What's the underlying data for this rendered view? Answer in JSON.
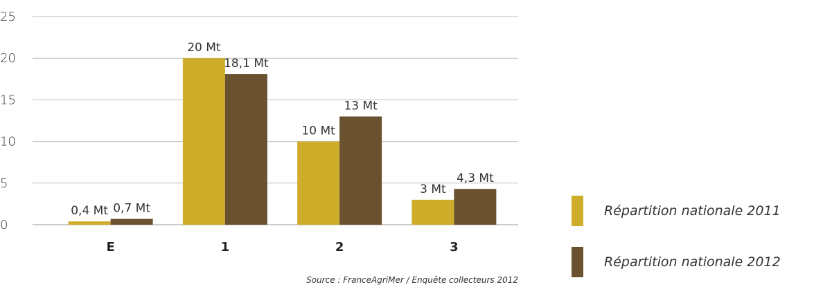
{
  "chart_data": {
    "type": "bar",
    "categories": [
      "E",
      "1",
      "2",
      "3"
    ],
    "series": [
      {
        "name": "Répartition nationale 2011",
        "values": [
          0.4,
          20,
          10,
          3
        ],
        "labels": [
          "0,4 Mt",
          "20 Mt",
          "10 Mt",
          "3 Mt"
        ],
        "color": "#cead2b"
      },
      {
        "name": "Répartition nationale 2012",
        "values": [
          0.7,
          18.1,
          13,
          4.3
        ],
        "labels": [
          "0,7 Mt",
          "18,1 Mt",
          "13 Mt",
          "4,3 Mt"
        ],
        "color": "#6a5230"
      }
    ],
    "yticks": [
      0,
      5,
      10,
      15,
      20,
      25
    ],
    "ylim": [
      0,
      25
    ],
    "grid": true,
    "legend_position": "bottom-right",
    "source": "Source : FranceAgriMer / Enquête collecteurs 2012"
  }
}
